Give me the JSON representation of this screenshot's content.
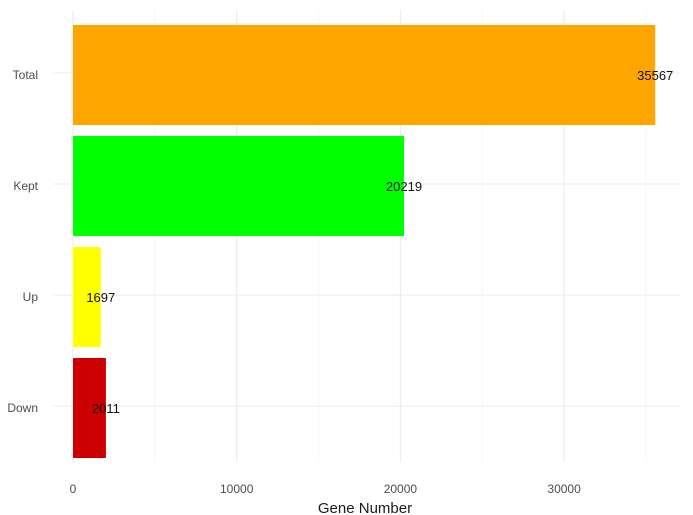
{
  "chart_data": {
    "type": "bar",
    "orientation": "horizontal",
    "categories": [
      "Total",
      "Kept",
      "Up",
      "Down"
    ],
    "values": [
      35567,
      20219,
      1697,
      2011
    ],
    "colors": [
      "#FFA500",
      "#00FF00",
      "#FFFF00",
      "#CC0000"
    ],
    "data_labels": [
      "35567",
      "20219",
      "1697",
      "2011"
    ],
    "xlabel": "Gene Number",
    "ylabel": "",
    "title": "",
    "xlim": [
      0,
      36000
    ],
    "x_ticks": [
      0,
      10000,
      20000,
      30000
    ],
    "x_tick_labels": [
      "0",
      "10000",
      "20000",
      "30000"
    ],
    "grid": true,
    "legend": "none"
  }
}
